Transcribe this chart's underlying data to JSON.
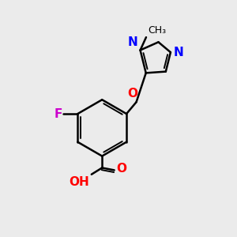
{
  "background_color": "#ebebeb",
  "bond_color": "#000000",
  "atom_colors": {
    "F": "#cc00cc",
    "O": "#ff0000",
    "N": "#0000ff",
    "C": "#000000"
  },
  "figsize": [
    3.0,
    3.0
  ],
  "dpi": 100
}
